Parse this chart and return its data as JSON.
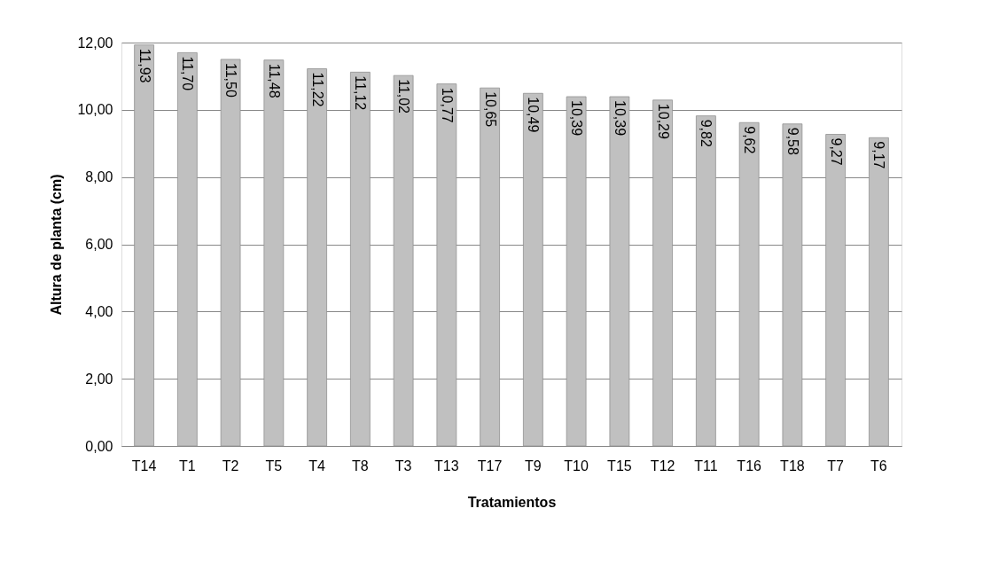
{
  "chart_data": {
    "type": "bar",
    "xlabel": "Tratamientos",
    "ylabel": "Altura de planta  (cm)",
    "categories": [
      "T14",
      "T1",
      "T2",
      "T5",
      "T4",
      "T8",
      "T3",
      "T13",
      "T17",
      "T9",
      "T10",
      "T15",
      "T12",
      "T11",
      "T16",
      "T18",
      "T7",
      "T6"
    ],
    "values": [
      11.93,
      11.7,
      11.5,
      11.48,
      11.22,
      11.12,
      11.02,
      10.77,
      10.65,
      10.49,
      10.39,
      10.39,
      10.29,
      9.82,
      9.62,
      9.58,
      9.27,
      9.17
    ],
    "value_labels": [
      "11,93",
      "11,70",
      "11,50",
      "11,48",
      "11,22",
      "11,12",
      "11,02",
      "10,77",
      "10,65",
      "10,49",
      "10,39",
      "10,39",
      "10,29",
      "9,82",
      "9,62",
      "9,58",
      "9,27",
      "9,17"
    ],
    "color": "#c0c0c0",
    "ylim": [
      0,
      12
    ],
    "yticks": [
      {
        "value": 0,
        "label": "0,00"
      },
      {
        "value": 2,
        "label": "2,00"
      },
      {
        "value": 4,
        "label": "4,00"
      },
      {
        "value": 6,
        "label": "6,00"
      },
      {
        "value": 8,
        "label": "8,00"
      },
      {
        "value": 10,
        "label": "10,00"
      },
      {
        "value": 12,
        "label": "12,00"
      }
    ],
    "grid": "y"
  }
}
